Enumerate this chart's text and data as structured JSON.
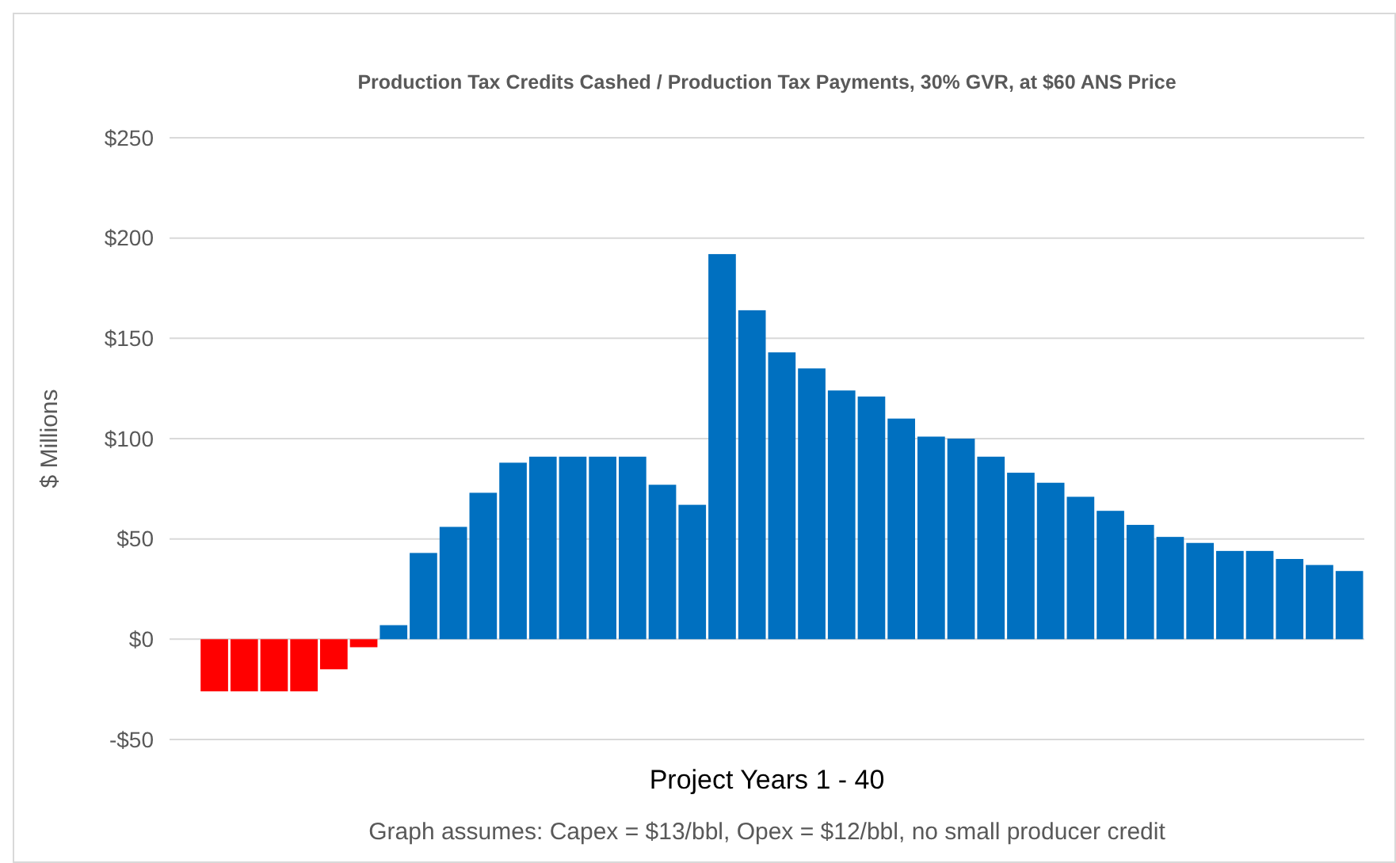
{
  "chart_data": {
    "type": "bar",
    "title": "Production Tax Credits Cashed / Production Tax Payments, 30% GVR, at $60 ANS Price",
    "xlabel": "Project Years 1 - 40",
    "ylabel": "$ Millions",
    "categories": [
      null,
      null,
      null,
      null,
      null,
      null,
      null,
      null,
      null,
      null,
      null,
      null,
      null,
      null,
      null,
      null,
      null,
      null,
      null,
      null,
      null,
      null,
      null,
      null,
      null,
      null,
      null,
      null,
      null,
      null,
      null,
      null,
      null,
      null,
      null,
      null,
      null,
      null,
      null,
      null
    ],
    "values": [
      0,
      -26,
      -26,
      -26,
      -26,
      -15,
      -4,
      7,
      43,
      56,
      73,
      88,
      91,
      91,
      91,
      91,
      77,
      67,
      192,
      164,
      143,
      135,
      124,
      121,
      110,
      101,
      100,
      91,
      83,
      78,
      71,
      64,
      57,
      51,
      48,
      44,
      44,
      40,
      37,
      34
    ],
    "colors": [
      "#0070c0",
      "#ff0000",
      "#ff0000",
      "#ff0000",
      "#ff0000",
      "#ff0000",
      "#ff0000",
      "#0070c0",
      "#0070c0",
      "#0070c0",
      "#0070c0",
      "#0070c0",
      "#0070c0",
      "#0070c0",
      "#0070c0",
      "#0070c0",
      "#0070c0",
      "#0070c0",
      "#0070c0",
      "#0070c0",
      "#0070c0",
      "#0070c0",
      "#0070c0",
      "#0070c0",
      "#0070c0",
      "#0070c0",
      "#0070c0",
      "#0070c0",
      "#0070c0",
      "#0070c0",
      "#0070c0",
      "#0070c0",
      "#0070c0",
      "#0070c0",
      "#0070c0",
      "#0070c0",
      "#0070c0",
      "#0070c0",
      "#0070c0",
      "#0070c0"
    ],
    "ylim": [
      -50,
      250
    ],
    "yticks": [
      {
        "value": -50,
        "label": "-$50"
      },
      {
        "value": 0,
        "label": "$0"
      },
      {
        "value": 50,
        "label": "$50"
      },
      {
        "value": 100,
        "label": "$100"
      },
      {
        "value": 150,
        "label": "$150"
      },
      {
        "value": 200,
        "label": "$200"
      },
      {
        "value": 250,
        "label": "$250"
      }
    ],
    "grid": "y",
    "annotations": [
      "Graph assumes: Capex = $13/bbl, Opex = $12/bbl, no small producer credit"
    ]
  }
}
